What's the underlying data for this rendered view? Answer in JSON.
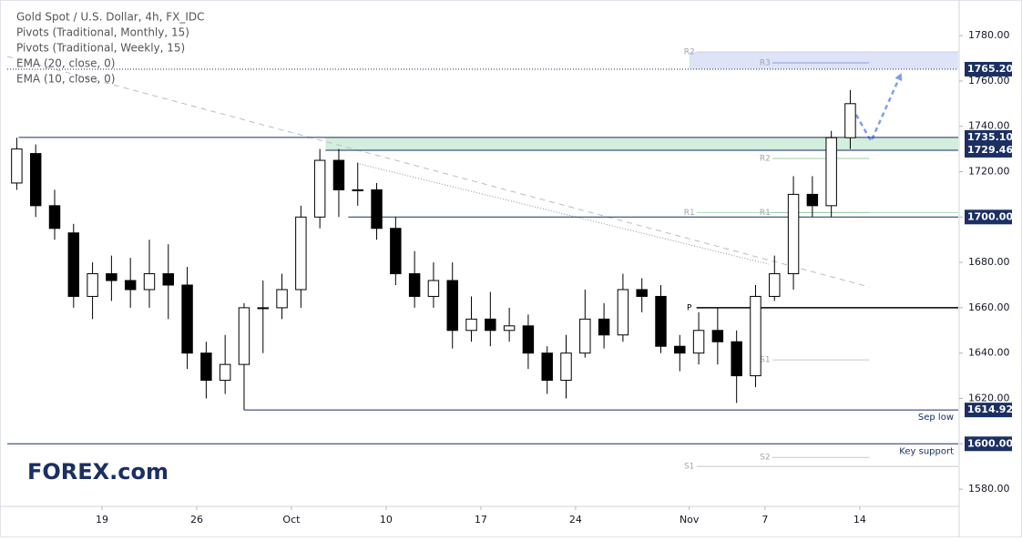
{
  "chart_data": {
    "type": "candlestick",
    "legend": [
      "Gold Spot / U.S. Dollar, 4h, FX_IDC",
      "Pivots (Traditional, Monthly, 15)",
      "Pivots (Traditional, Weekly, 15)",
      "EMA (20, close, 0)",
      "EMA (10, close, 0)"
    ],
    "x": [
      0,
      1,
      2,
      3,
      4,
      5,
      6,
      7,
      8,
      9,
      10,
      11,
      12,
      13,
      14,
      15,
      16,
      17,
      18,
      19,
      20,
      21,
      22,
      23,
      24,
      25,
      26,
      27,
      28,
      29,
      30,
      31,
      32,
      33,
      34,
      35,
      36,
      37,
      38,
      39,
      40,
      41,
      42,
      43,
      44
    ],
    "open": [
      1715,
      1728,
      1705,
      1693,
      1665,
      1675,
      1672,
      1668,
      1675,
      1670,
      1640,
      1628,
      1635,
      1660,
      1660,
      1668,
      1700,
      1725,
      1712,
      1712,
      1695,
      1675,
      1665,
      1672,
      1650,
      1655,
      1650,
      1652,
      1640,
      1628,
      1640,
      1655,
      1648,
      1668,
      1665,
      1643,
      1640,
      1650,
      1645,
      1630,
      1665,
      1675,
      1710,
      1705,
      1735
    ],
    "high": [
      1735,
      1732,
      1712,
      1697,
      1680,
      1683,
      1682,
      1690,
      1688,
      1678,
      1645,
      1648,
      1662,
      1672,
      1675,
      1705,
      1730,
      1730,
      1724,
      1715,
      1700,
      1685,
      1680,
      1680,
      1665,
      1667,
      1660,
      1657,
      1643,
      1648,
      1668,
      1662,
      1675,
      1673,
      1670,
      1648,
      1658,
      1660,
      1650,
      1670,
      1683,
      1718,
      1718,
      1738,
      1756
    ],
    "low": [
      1712,
      1700,
      1690,
      1660,
      1655,
      1663,
      1660,
      1660,
      1655,
      1633,
      1620,
      1622,
      1614.92,
      1640,
      1655,
      1660,
      1695,
      1700,
      1705,
      1690,
      1670,
      1660,
      1660,
      1642,
      1645,
      1643,
      1645,
      1633,
      1622,
      1620,
      1638,
      1642,
      1645,
      1658,
      1640,
      1632,
      1635,
      1635,
      1618,
      1625,
      1663,
      1668,
      1700,
      1700,
      1730
    ],
    "close": [
      1730,
      1705,
      1695,
      1665,
      1675,
      1672,
      1668,
      1675,
      1670,
      1640,
      1628,
      1635,
      1660,
      1660,
      1668,
      1700,
      1725,
      1712,
      1712,
      1695,
      1675,
      1665,
      1672,
      1650,
      1655,
      1650,
      1652,
      1640,
      1628,
      1640,
      1655,
      1648,
      1668,
      1665,
      1643,
      1640,
      1650,
      1645,
      1630,
      1665,
      1675,
      1710,
      1705,
      1735,
      1750
    ],
    "up_color": "#ffffff",
    "down_color": "#000000",
    "xlim": [
      0,
      50.2
    ],
    "xticks": [
      {
        "value": 5,
        "label": "19"
      },
      {
        "value": 10,
        "label": "26"
      },
      {
        "value": 15,
        "label": "Oct"
      },
      {
        "value": 20,
        "label": "10"
      },
      {
        "value": 25,
        "label": "17"
      },
      {
        "value": 30,
        "label": "24"
      },
      {
        "value": 36,
        "label": "Nov"
      },
      {
        "value": 40,
        "label": "7"
      },
      {
        "value": 45,
        "label": "14"
      }
    ],
    "ylim": [
      1572.4,
      1793.7
    ],
    "yticks": [
      {
        "value": 1580,
        "label": "1580.00"
      },
      {
        "value": 1600,
        "label": "1600.00"
      },
      {
        "value": 1620,
        "label": "1620.00"
      },
      {
        "value": 1640,
        "label": "1640.00"
      },
      {
        "value": 1660,
        "label": "1660.00"
      },
      {
        "value": 1680,
        "label": "1680.00"
      },
      {
        "value": 1700,
        "label": "1700.00"
      },
      {
        "value": 1720,
        "label": "1720.00"
      },
      {
        "value": 1740,
        "label": "1740.00"
      },
      {
        "value": 1760,
        "label": "1760.00"
      },
      {
        "value": 1780,
        "label": "1780.00"
      }
    ],
    "levels": [
      {
        "value": 1765.2,
        "label": "1765.20",
        "start": 0,
        "style": "dotted"
      },
      {
        "value": 1735.1,
        "label": "1735.10",
        "start": 0.6,
        "style": "solid"
      },
      {
        "value": 1729.46,
        "label": "1729.46",
        "start": 16.8,
        "style": "solid"
      },
      {
        "value": 1700,
        "label": "1700.00",
        "start": 18,
        "style": "solid"
      },
      {
        "value": 1614.92,
        "label": "1614.92",
        "start": 12.5,
        "style": "solid"
      },
      {
        "value": 1600,
        "label": "1600.00",
        "start": 0,
        "style": "solid"
      }
    ],
    "zones": [
      {
        "from": 1729.46,
        "to": 1735.1,
        "start": 16.8,
        "color": "#c8ead4"
      },
      {
        "from": 1765.2,
        "to": 1772.8,
        "start": 36,
        "color": "#d6dcf5"
      }
    ],
    "pivots": [
      {
        "label": "R2",
        "value": 1772.8,
        "start": 36,
        "end": 50.2,
        "color": "#c9cfe8"
      },
      {
        "label": "R1",
        "value": 1702,
        "start": 36,
        "end": 50.2,
        "color": "#a8dcb8"
      },
      {
        "label": "P",
        "value": 1660,
        "start": 36,
        "end": 50.2,
        "color": "#000000"
      },
      {
        "label": "S1",
        "value": 1590,
        "start": 36,
        "end": 50.2,
        "color": "#c8c8c8"
      },
      {
        "label": "R3",
        "value": 1768,
        "start": 40,
        "end": 45.5,
        "color": "#8f9bd8"
      },
      {
        "label": "R2",
        "value": 1725.8,
        "start": 40,
        "end": 45.5,
        "color": "#9ccfaa"
      },
      {
        "label": "R1",
        "value": 1702,
        "start": 40,
        "end": 45.5,
        "color": "#9ccfaa"
      },
      {
        "label": "S1",
        "value": 1637,
        "start": 40,
        "end": 45.5,
        "color": "#c8c8c8"
      },
      {
        "label": "S2",
        "value": 1594,
        "start": 40,
        "end": 45.5,
        "color": "#c8c8c8"
      }
    ],
    "annotations": [
      {
        "text": "Sep low",
        "value": 1614.92
      },
      {
        "text": "Key support",
        "value": 1600
      }
    ],
    "drawings": [
      {
        "x": [
          0,
          45.5
        ],
        "y": [
          1770.8,
          1669.2
        ],
        "color": "#b8bcc8",
        "dash": "6 5"
      },
      {
        "x": [
          18.6,
          40.2
        ],
        "y": [
          1723.4,
          1679.2
        ],
        "color": "#8a8e99",
        "dash": "1 2"
      },
      {
        "x": [
          44.6,
          45.6,
          47.2
        ],
        "y": [
          1748.3,
          1733.4,
          1763.5
        ],
        "color": "#7b9ef0",
        "dash": "5 4"
      }
    ],
    "logo": "FOREX.com"
  }
}
